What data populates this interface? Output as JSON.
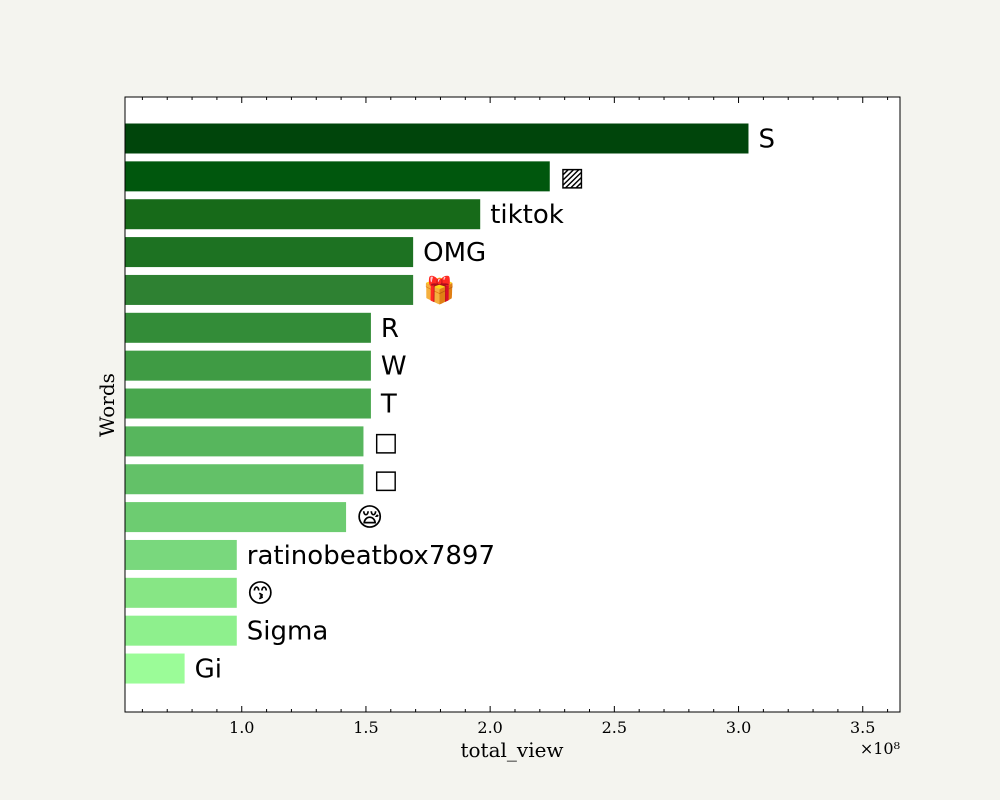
{
  "chart_data": {
    "type": "bar",
    "orientation": "horizontal",
    "xlabel": "total_view",
    "ylabel": "Words",
    "x_offset_label": "×10⁸",
    "xlim": [
      0.53,
      3.65
    ],
    "x_ticks": [
      1.0,
      1.5,
      2.0,
      2.5,
      3.0,
      3.5
    ],
    "x_tick_labels": [
      "1.0",
      "1.5",
      "2.0",
      "2.5",
      "3.0",
      "3.5"
    ],
    "grid": false,
    "categories": [
      "S",
      "▨",
      "tiktok",
      "OMG",
      "🎁",
      "R",
      "W",
      "T",
      "□",
      "□",
      "😪",
      "ratinobeatbox7897",
      "😙",
      "Sigma",
      "Gi"
    ],
    "values": [
      3.04,
      2.24,
      1.96,
      1.69,
      1.69,
      1.52,
      1.52,
      1.52,
      1.49,
      1.49,
      1.42,
      0.98,
      0.98,
      0.98,
      0.77
    ],
    "colors": [
      "#00450b",
      "#00570d",
      "#176a19",
      "#1d7222",
      "#2e8132",
      "#338c38",
      "#3f9b44",
      "#49a74e",
      "#57b65d",
      "#63c168",
      "#6dcc71",
      "#79d87d",
      "#87e685",
      "#8ef08d",
      "#9bfc98"
    ]
  }
}
